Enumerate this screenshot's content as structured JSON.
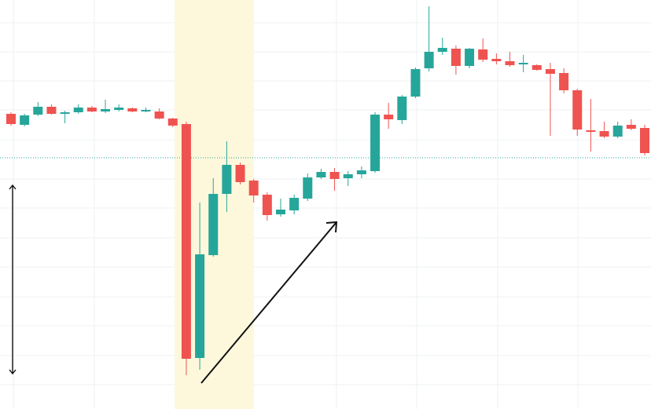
{
  "chart_data": {
    "type": "candlestick",
    "ylim": [
      0,
      521
    ],
    "grid": true,
    "up_color": "#26a69a",
    "down_color": "#ef5350",
    "open": [
      376,
      362,
      375,
      385,
      376,
      378,
      384,
      379,
      381,
      383,
      379,
      379,
      370,
      363,
      65,
      196,
      274,
      311,
      291,
      273,
      248,
      253,
      268,
      295,
      302,
      294,
      299,
      303,
      375,
      368,
      398,
      434,
      455,
      459,
      437,
      458,
      446,
      443,
      439,
      438,
      433,
      428,
      406,
      355,
      354,
      347,
      362,
      358
    ],
    "close": [
      363,
      374,
      385,
      376,
      378,
      384,
      379,
      382,
      384,
      379,
      381,
      370,
      361,
      64,
      197,
      274,
      311,
      289,
      272,
      247,
      254,
      269,
      295,
      302,
      293,
      299,
      304,
      375,
      369,
      398,
      433,
      455,
      460,
      437,
      459,
      445,
      443,
      438,
      441,
      432,
      427,
      406,
      356,
      353,
      347,
      361,
      357,
      326
    ],
    "high": [
      378,
      376,
      391,
      388,
      380,
      388,
      386,
      394,
      388,
      384,
      384,
      383,
      371,
      366,
      263,
      294,
      341,
      314,
      293,
      276,
      268,
      273,
      300,
      306,
      307,
      303,
      309,
      378,
      390,
      400,
      435,
      513,
      473,
      463,
      460,
      472,
      453,
      455,
      451,
      439,
      441,
      434,
      408,
      395,
      366,
      366,
      369,
      362
    ],
    "low": [
      361,
      360,
      373,
      375,
      364,
      376,
      378,
      377,
      379,
      378,
      378,
      369,
      359,
      43,
      50,
      194,
      251,
      286,
      263,
      240,
      245,
      248,
      265,
      293,
      278,
      284,
      294,
      301,
      357,
      363,
      396,
      430,
      451,
      426,
      434,
      442,
      439,
      436,
      429,
      431,
      348,
      402,
      348,
      328,
      345,
      345,
      355,
      323
    ]
  }
}
